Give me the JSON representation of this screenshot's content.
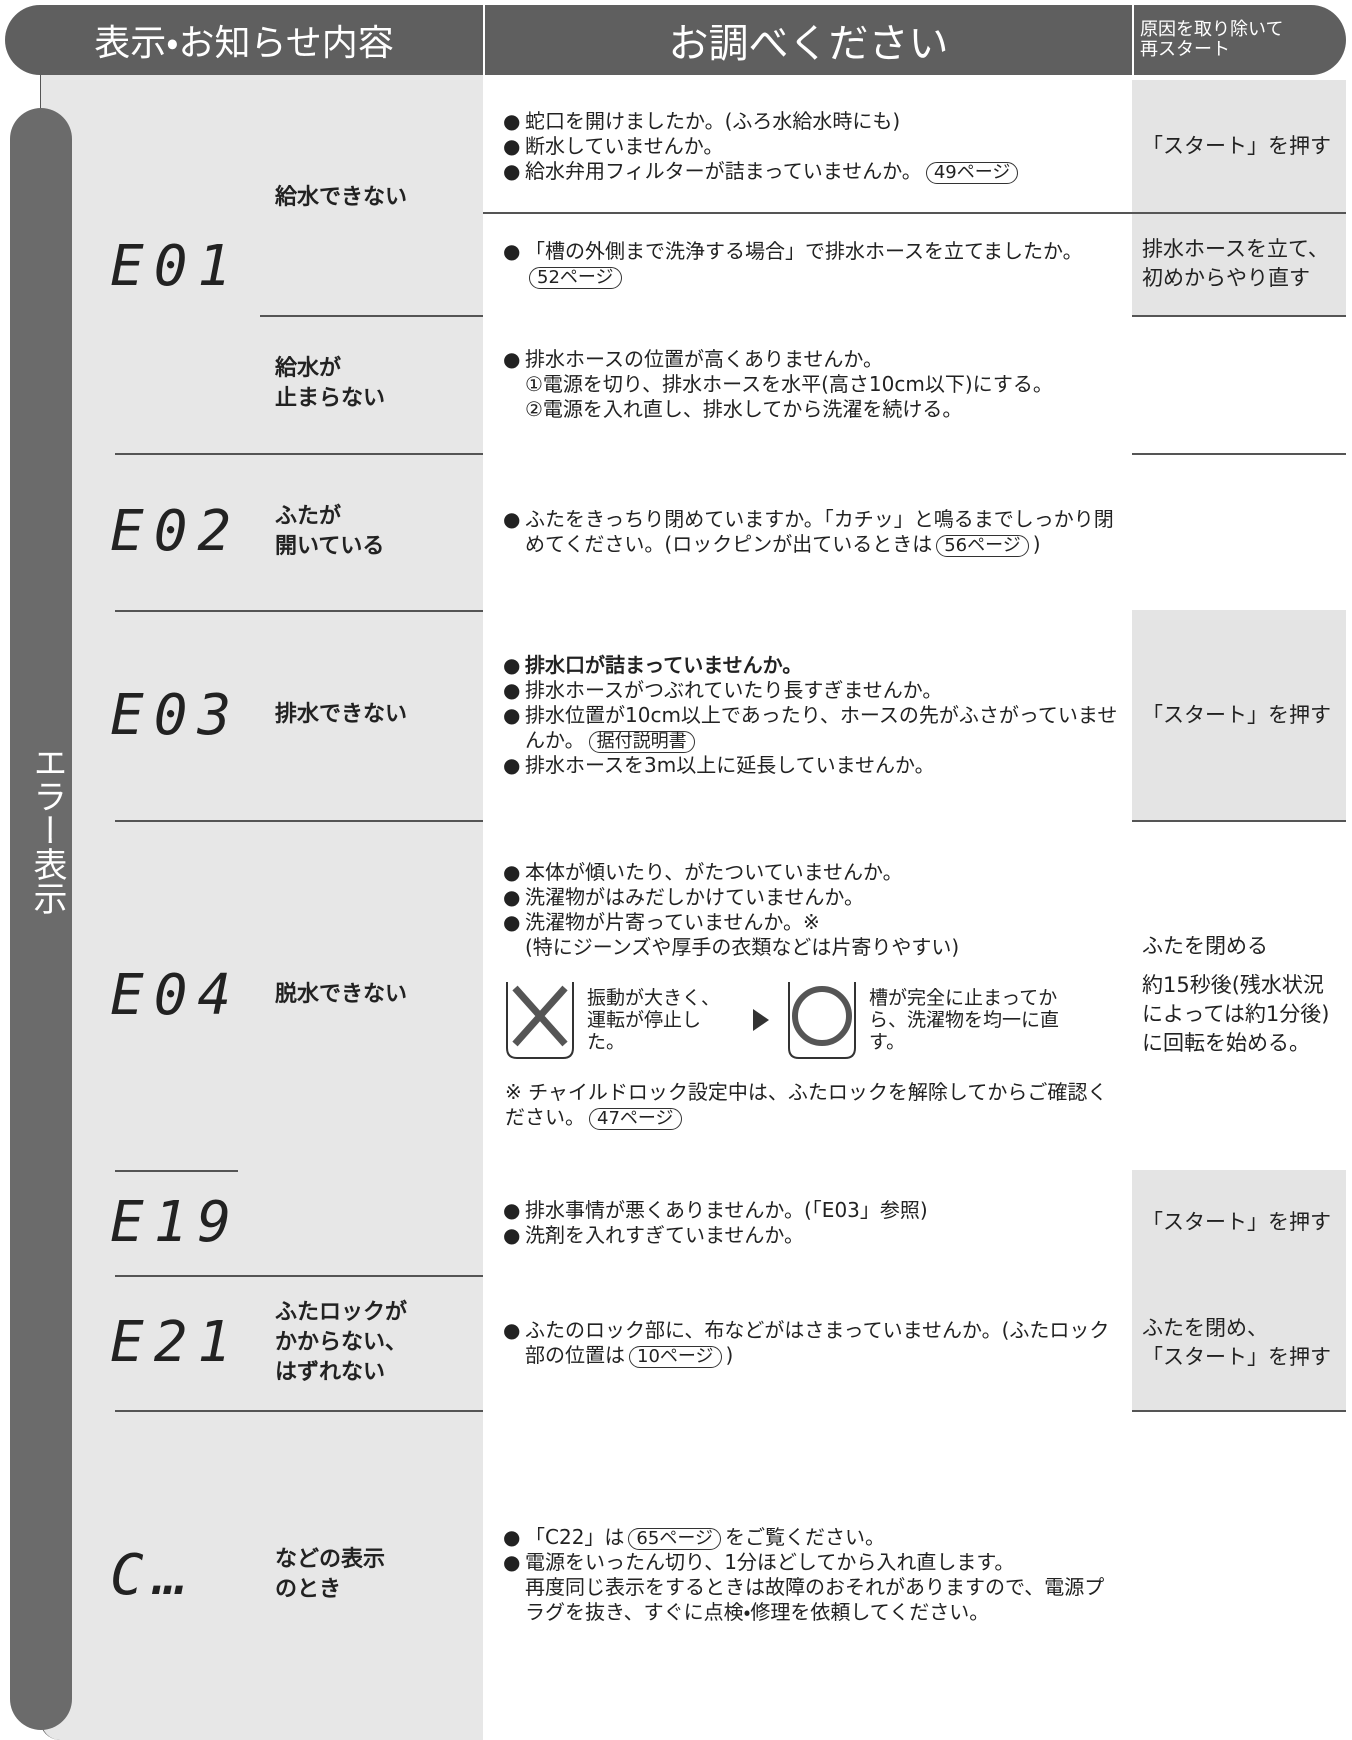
{
  "header": {
    "columns": [
      "表示・お知らせ内容",
      "お調べください"
    ],
    "restart": [
      "原因を取り除いて",
      "再スタート"
    ]
  },
  "side_label": "エラー表示",
  "rows": [
    {
      "code": "E01",
      "groups": [
        {
          "condition": [
            "給水できない"
          ],
          "blocks": [
            {
              "checks": [
                {
                  "text": "蛇口を開けましたか。(ふろ水給水時にも)"
                },
                {
                  "text": "断水していませんか。"
                },
                {
                  "text": "給水弁用フィルターが詰まっていませんか。",
                  "ref": "49ページ"
                }
              ],
              "action": [
                "「スタート」を押す"
              ]
            },
            {
              "checks": [
                {
                  "text": "「槽の外側まで洗浄する場合」で排水ホースを立てましたか。",
                  "ref": "52ページ"
                }
              ],
              "action": [
                "排水ホースを立て、",
                "初めからやり直す"
              ]
            }
          ]
        },
        {
          "condition": [
            "給水が",
            "止まらない"
          ],
          "blocks": [
            {
              "checks": [
                {
                  "text": "排水ホースの位置が高くありませんか。",
                  "sub": [
                    "①電源を切り、排水ホースを水平(高さ10cm以下)にする。",
                    "②電源を入れ直し、排水してから洗濯を続ける。"
                  ]
                }
              ]
            }
          ]
        }
      ]
    },
    {
      "code": "E02",
      "groups": [
        {
          "condition": [
            "ふたが",
            "開いている"
          ],
          "blocks": [
            {
              "checks": [
                {
                  "text": "ふたをきっちり閉めていますか。「カチッ」と鳴るまでしっかり閉めてください。(ロックピンが出ているときは",
                  "ref": "56ページ",
                  "after": ")"
                }
              ]
            }
          ]
        }
      ]
    },
    {
      "code": "E03",
      "groups": [
        {
          "condition": [
            "排水できない"
          ],
          "blocks": [
            {
              "checks": [
                {
                  "text": "排水口が詰まっていませんか。",
                  "bold": true
                },
                {
                  "text": "排水ホースがつぶれていたり長すぎませんか。"
                },
                {
                  "text": "排水位置が10cm以上であったり、ホースの先がふさがっていませんか。",
                  "ref": "据付説明書"
                },
                {
                  "text": "排水ホースを3m以上に延長していませんか。"
                }
              ],
              "action": [
                "「スタート」を押す"
              ]
            }
          ]
        }
      ]
    },
    {
      "code": "E04",
      "groups": [
        {
          "condition": [
            "脱水できない"
          ],
          "blocks": [
            {
              "checks": [
                {
                  "text": "本体が傾いたり、がたついていませんか。"
                },
                {
                  "text": "洗濯物がはみだしかけていませんか。"
                },
                {
                  "text": "洗濯物が片寄っていませんか。※",
                  "sub": [
                    "(特にジーンズや厚手の衣類などは片寄りやすい)"
                  ]
                }
              ],
              "figure": {
                "before": "振動が大きく、運転が停止した。",
                "after": "槽が完全に止まってから、洗濯物を均一に直す。"
              },
              "note": {
                "text": "※ チャイルドロック設定中は、ふたロックを解除してからご確認ください。",
                "ref": "47ページ"
              },
              "action": [
                "ふたを閉める",
                "約15秒後(残水状況によっては約1分後)に回転を始める。"
              ]
            }
          ]
        }
      ]
    },
    {
      "code": "E19",
      "groups": [
        {
          "condition": [],
          "blocks": [
            {
              "checks": [
                {
                  "text": "排水事情が悪くありませんか。(「E03」参照)"
                },
                {
                  "text": "洗剤を入れすぎていませんか。"
                }
              ],
              "action": [
                "「スタート」を押す"
              ]
            }
          ]
        }
      ]
    },
    {
      "code": "E21",
      "groups": [
        {
          "condition": [
            "ふたロックが",
            "かからない、",
            "はずれない"
          ],
          "blocks": [
            {
              "checks": [
                {
                  "text": "ふたのロック部に、布などがはさまっていませんか。(ふたロック部の位置は",
                  "ref": "10ページ",
                  "after": ")"
                }
              ],
              "action": [
                "ふたを閉め、",
                "「スタート」を押す"
              ]
            }
          ]
        }
      ]
    },
    {
      "code": "C…",
      "groups": [
        {
          "condition": [
            "などの表示",
            "のとき"
          ],
          "blocks": [
            {
              "checks": [
                {
                  "text": "「C22」は",
                  "ref": "65ページ",
                  "after": "をご覧ください。"
                },
                {
                  "text": "電源をいったん切り、1分ほどしてから入れ直します。",
                  "sub": [
                    "再度同じ表示をするときは故障のおそれがありますので、電源プラグを抜き、すぐに点検・修理を依頼してください。"
                  ]
                }
              ]
            }
          ]
        }
      ]
    }
  ]
}
